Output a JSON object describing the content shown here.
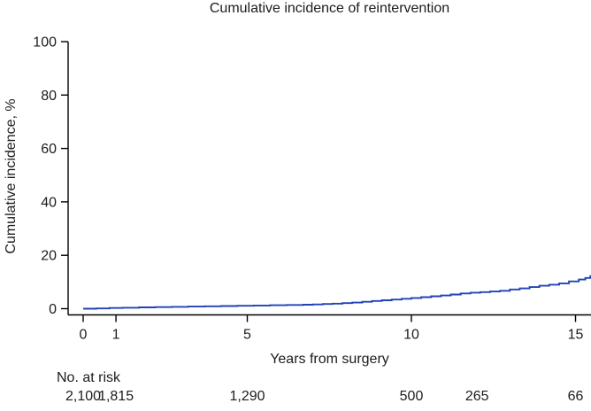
{
  "figure": {
    "background": "#ffffff"
  },
  "chart_data": {
    "type": "line",
    "subtype": "cumulative-incidence-step-curve",
    "title": "Cumulative incidence of reintervention",
    "xlabel": "Years from surgery",
    "ylabel": "Cumulative incidence, %",
    "xlim": [
      0,
      15.6
    ],
    "ylim": [
      0,
      100
    ],
    "x_ticks": [
      0,
      1,
      5,
      10,
      15
    ],
    "y_ticks": [
      0,
      20,
      40,
      60,
      80,
      100
    ],
    "grid": false,
    "legend": "none",
    "series": [
      {
        "name": "Cumulative incidence of reintervention",
        "color": "#2243b5",
        "style": "step-after",
        "x": [
          0,
          0.4,
          0.8,
          1.2,
          1.7,
          2.2,
          2.7,
          3.2,
          3.7,
          4.2,
          4.7,
          5.2,
          5.7,
          6.2,
          6.7,
          7.0,
          7.3,
          7.6,
          7.9,
          8.2,
          8.5,
          8.8,
          9.1,
          9.4,
          9.7,
          10.0,
          10.3,
          10.6,
          10.9,
          11.2,
          11.5,
          11.8,
          12.1,
          12.4,
          12.7,
          13.0,
          13.3,
          13.6,
          13.9,
          14.2,
          14.5,
          14.8,
          15.1,
          15.3,
          15.45,
          15.55
        ],
        "y": [
          0,
          0.1,
          0.25,
          0.35,
          0.5,
          0.6,
          0.7,
          0.8,
          0.9,
          1.0,
          1.1,
          1.2,
          1.3,
          1.4,
          1.5,
          1.6,
          1.75,
          1.9,
          2.1,
          2.3,
          2.6,
          2.9,
          3.15,
          3.4,
          3.7,
          4.0,
          4.3,
          4.65,
          4.95,
          5.3,
          5.7,
          6.0,
          6.2,
          6.45,
          6.7,
          7.2,
          7.6,
          8.1,
          8.6,
          9.0,
          9.5,
          10.2,
          10.9,
          11.5,
          12.2,
          12.6
        ]
      }
    ],
    "risk_table": {
      "label": "No. at risk",
      "times": [
        0,
        1,
        5,
        10,
        12,
        15
      ],
      "counts": [
        "2,100",
        "1,815",
        "1,290",
        "500",
        "265",
        "66"
      ]
    }
  },
  "colors": {
    "curve": "#2243b5",
    "axis": "#000000",
    "text": "#1c1c1c"
  }
}
